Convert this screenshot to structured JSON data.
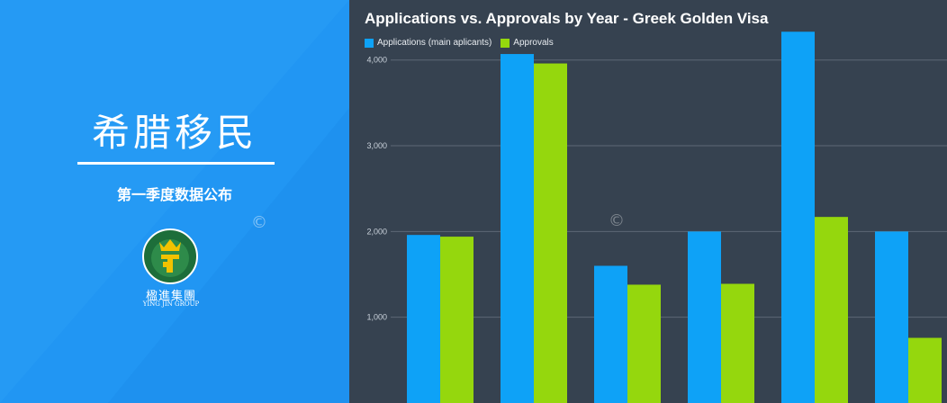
{
  "banner": {
    "title": "希腊移民",
    "subtitle": "第一季度数据公布",
    "logo_text_cn": "楹進集團",
    "logo_text_en": "YING JIN GROUP",
    "watermark": "©"
  },
  "colors": {
    "left_bg": "#2196f3",
    "chart_bg": "#364250",
    "applications": "#0ea2f7",
    "approvals": "#95d70d"
  },
  "chart_data": {
    "type": "bar",
    "title": "Applications vs. Approvals by Year - Greek Golden Visa",
    "xlabel": "",
    "ylabel": "",
    "ylim": [
      0,
      4700
    ],
    "grid": true,
    "legend_position": "top-left",
    "yticks": [
      "1,000",
      "2,000",
      "3,000",
      "4,000"
    ],
    "categories": [
      "",
      "",
      "",
      "",
      "",
      ""
    ],
    "series": [
      {
        "name": "Applications (main aplicants)",
        "values": [
          1960,
          4070,
          1600,
          2000,
          4330,
          2000
        ]
      },
      {
        "name": "Approvals",
        "values": [
          1940,
          3960,
          1380,
          1390,
          2170,
          760
        ]
      }
    ]
  }
}
